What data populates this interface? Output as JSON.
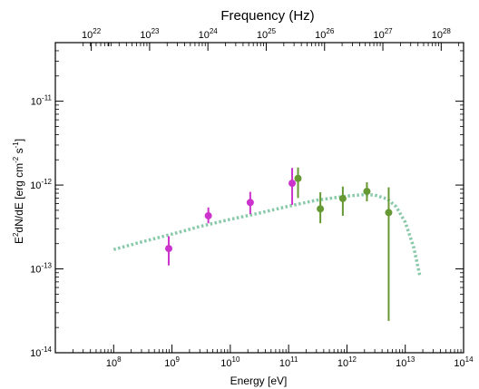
{
  "chart_data": {
    "type": "scatter",
    "xlabel": "Energy [eV]",
    "ylabel_parts": [
      "E",
      "2",
      "dN/dE  [erg cm",
      "-2",
      " s",
      "-1",
      "]"
    ],
    "top_xlabel": "Frequency (Hz)",
    "x_scale": "log",
    "y_scale": "log",
    "xlim": [
      10000000.0,
      100000000000000.0
    ],
    "ylim": [
      1e-14,
      5e-11
    ],
    "top_xlim": [
      2.42e+21,
      2.42e+28
    ],
    "x_ticks": [
      {
        "value": 100000000.0,
        "base": "10",
        "exp": "8"
      },
      {
        "value": 1000000000.0,
        "base": "10",
        "exp": "9"
      },
      {
        "value": 10000000000.0,
        "base": "10",
        "exp": "10"
      },
      {
        "value": 100000000000.0,
        "base": "10",
        "exp": "11"
      },
      {
        "value": 1000000000000.0,
        "base": "10",
        "exp": "12"
      },
      {
        "value": 10000000000000.0,
        "base": "10",
        "exp": "13"
      },
      {
        "value": 100000000000000.0,
        "base": "10",
        "exp": "14"
      }
    ],
    "top_x_ticks": [
      {
        "value": 1e+22,
        "base": "10",
        "exp": "22"
      },
      {
        "value": 1e+23,
        "base": "10",
        "exp": "23"
      },
      {
        "value": 1e+24,
        "base": "10",
        "exp": "24"
      },
      {
        "value": 1e+25,
        "base": "10",
        "exp": "25"
      },
      {
        "value": 1e+26,
        "base": "10",
        "exp": "26"
      },
      {
        "value": 1e+27,
        "base": "10",
        "exp": "27"
      },
      {
        "value": 1e+28,
        "base": "10",
        "exp": "28"
      }
    ],
    "y_ticks": [
      {
        "value": 1e-14,
        "base": "10",
        "exp": "-14"
      },
      {
        "value": 1e-13,
        "base": "10",
        "exp": "-13"
      },
      {
        "value": 1e-12,
        "base": "10",
        "exp": "-12"
      },
      {
        "value": 1e-11,
        "base": "10",
        "exp": "-11"
      }
    ],
    "series": [
      {
        "color": "#cc33cc",
        "marker": "circle",
        "points": [
          {
            "x": 880000000.0,
            "y": 1.75e-13,
            "ylo": 1.1e-13,
            "yhi": 2.45e-13
          },
          {
            "x": 4200000000.0,
            "y": 4.3e-13,
            "ylo": 3.5e-13,
            "yhi": 5.4e-13
          },
          {
            "x": 22000000000.0,
            "y": 6.2e-13,
            "ylo": 4.5e-13,
            "yhi": 8.3e-13
          },
          {
            "x": 115000000000.0,
            "y": 1.05e-12,
            "ylo": 5.8e-13,
            "yhi": 1.6e-12
          }
        ]
      },
      {
        "color": "#669933",
        "marker": "circle",
        "points": [
          {
            "x": 145000000000.0,
            "y": 1.2e-12,
            "ylo": 7e-13,
            "yhi": 1.62e-12
          },
          {
            "x": 350000000000.0,
            "y": 5.2e-13,
            "ylo": 3.5e-13,
            "yhi": 8.2e-13
          },
          {
            "x": 850000000000.0,
            "y": 6.9e-13,
            "ylo": 4.3e-13,
            "yhi": 9.6e-13
          },
          {
            "x": 2200000000000.0,
            "y": 8.4e-13,
            "ylo": 6.4e-13,
            "yhi": 1.08e-12
          },
          {
            "x": 5200000000000.0,
            "y": 4.7e-13,
            "ylo": 2.4e-14,
            "yhi": 9.4e-13
          }
        ]
      }
    ],
    "model_curve": {
      "color": "#88c9a8",
      "style": "dotted",
      "points": [
        [
          100000000.0,
          1.7e-13
        ],
        [
          300000000.0,
          2.1e-13
        ],
        [
          1000000000.0,
          2.6e-13
        ],
        [
          3000000000.0,
          3.2e-13
        ],
        [
          10000000000.0,
          3.9e-13
        ],
        [
          30000000000.0,
          4.6e-13
        ],
        [
          100000000000.0,
          5.6e-13
        ],
        [
          300000000000.0,
          6.6e-13
        ],
        [
          1000000000000.0,
          7.4e-13
        ],
        [
          2000000000000.0,
          7.7e-13
        ],
        [
          3000000000000.0,
          7.6e-13
        ],
        [
          5000000000000.0,
          6.8e-13
        ],
        [
          7000000000000.0,
          5.5e-13
        ],
        [
          10000000000000.0,
          3.6e-13
        ],
        [
          14000000000000.0,
          1.8e-13
        ],
        [
          18000000000000.0,
          8e-14
        ]
      ]
    }
  }
}
